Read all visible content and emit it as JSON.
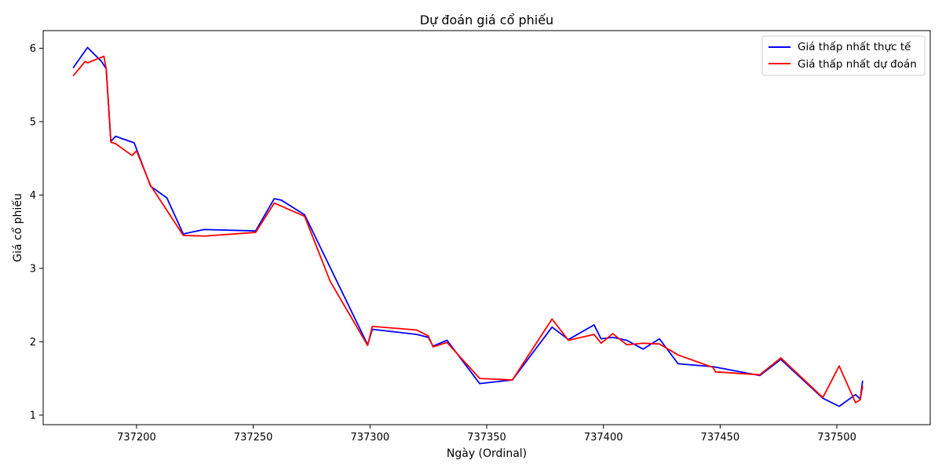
{
  "chart_data": {
    "type": "line",
    "title": "Dự đoán giá cổ phiếu",
    "xlabel": "Ngày (Ordinal)",
    "ylabel": "Giá cổ phiếu",
    "xlim": [
      737160,
      737540
    ],
    "ylim": [
      0.87,
      6.24
    ],
    "xticks": [
      737200,
      737250,
      737300,
      737350,
      737400,
      737450,
      737500
    ],
    "yticks": [
      1,
      2,
      3,
      4,
      5,
      6
    ],
    "grid": false,
    "legend_position": "top-right",
    "series": [
      {
        "name": "Giá thấp nhất thực tế",
        "color": "#0000ff",
        "points": [
          [
            737173,
            5.74
          ],
          [
            737179,
            6.01
          ],
          [
            737185,
            5.82
          ],
          [
            737187,
            5.72
          ],
          [
            737189,
            4.73
          ],
          [
            737191,
            4.8
          ],
          [
            737199,
            4.71
          ],
          [
            737206,
            4.12
          ],
          [
            737213,
            3.96
          ],
          [
            737220,
            3.47
          ],
          [
            737229,
            3.53
          ],
          [
            737251,
            3.51
          ],
          [
            737259,
            3.95
          ],
          [
            737262,
            3.93
          ],
          [
            737272,
            3.73
          ],
          [
            737299,
            1.96
          ],
          [
            737301,
            2.17
          ],
          [
            737320,
            2.1
          ],
          [
            737325,
            2.06
          ],
          [
            737327,
            1.94
          ],
          [
            737333,
            2.02
          ],
          [
            737347,
            1.43
          ],
          [
            737361,
            1.48
          ],
          [
            737378,
            2.2
          ],
          [
            737385,
            2.03
          ],
          [
            737396,
            2.23
          ],
          [
            737399,
            2.04
          ],
          [
            737404,
            2.06
          ],
          [
            737410,
            2.02
          ],
          [
            737417,
            1.9
          ],
          [
            737424,
            2.04
          ],
          [
            737432,
            1.7
          ],
          [
            737447,
            1.66
          ],
          [
            737467,
            1.54
          ],
          [
            737476,
            1.76
          ],
          [
            737494,
            1.23
          ],
          [
            737501,
            1.12
          ],
          [
            737508,
            1.28
          ],
          [
            737510,
            1.22
          ],
          [
            737511,
            1.46
          ]
        ]
      },
      {
        "name": "Giá thấp nhất dự đoán",
        "color": "#ff0000",
        "points": [
          [
            737173,
            5.63
          ],
          [
            737178,
            5.82
          ],
          [
            737179,
            5.8
          ],
          [
            737186,
            5.89
          ],
          [
            737187,
            5.72
          ],
          [
            737189,
            4.72
          ],
          [
            737191,
            4.7
          ],
          [
            737198,
            4.54
          ],
          [
            737200,
            4.6
          ],
          [
            737206,
            4.13
          ],
          [
            737220,
            3.45
          ],
          [
            737229,
            3.44
          ],
          [
            737251,
            3.49
          ],
          [
            737259,
            3.89
          ],
          [
            737272,
            3.71
          ],
          [
            737283,
            2.82
          ],
          [
            737299,
            1.95
          ],
          [
            737301,
            2.21
          ],
          [
            737320,
            2.16
          ],
          [
            737325,
            2.08
          ],
          [
            737327,
            1.93
          ],
          [
            737333,
            1.99
          ],
          [
            737347,
            1.5
          ],
          [
            737361,
            1.48
          ],
          [
            737378,
            2.31
          ],
          [
            737385,
            2.02
          ],
          [
            737396,
            2.1
          ],
          [
            737399,
            1.98
          ],
          [
            737404,
            2.11
          ],
          [
            737410,
            1.96
          ],
          [
            737417,
            1.98
          ],
          [
            737424,
            1.97
          ],
          [
            737432,
            1.82
          ],
          [
            737447,
            1.65
          ],
          [
            737448,
            1.59
          ],
          [
            737467,
            1.55
          ],
          [
            737476,
            1.78
          ],
          [
            737494,
            1.24
          ],
          [
            737501,
            1.67
          ],
          [
            737508,
            1.17
          ],
          [
            737510,
            1.21
          ],
          [
            737511,
            1.39
          ]
        ]
      }
    ]
  }
}
